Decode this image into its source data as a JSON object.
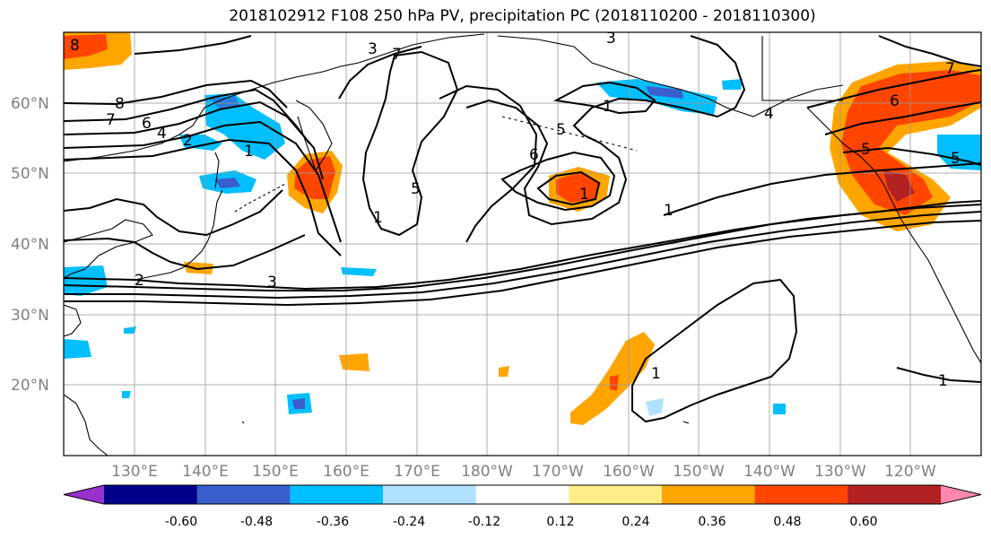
{
  "title": "2018102912 F108 250 hPa PV, precipitation PC (2018110200 - 2018110300)",
  "lat_labels": [
    "60°N",
    "50°N",
    "40°N",
    "30°N",
    "20°N"
  ],
  "lon_labels": [
    "130°E",
    "140°E",
    "150°E",
    "160°E",
    "170°E",
    "180°W",
    "170°W",
    "160°W",
    "150°W",
    "140°W",
    "130°W",
    "120°W"
  ],
  "colorbar": {
    "colors": [
      "#9932cc",
      "#00008b",
      "#3a5fcd",
      "#00bfff",
      "#b0e2ff",
      "#ffffff",
      "#ffee88",
      "#ffa500",
      "#ff4500",
      "#b22222",
      "#ff88b0"
    ],
    "tick_labels": [
      "-0.60",
      "-0.48",
      "-0.36",
      "-0.24",
      "-0.12",
      "0.12",
      "0.24",
      "0.36",
      "0.48",
      "0.60"
    ]
  },
  "map_data": {
    "projection": "PlateCarree",
    "extent_lon": [
      120,
      250
    ],
    "extent_lat": [
      10,
      70
    ],
    "grid_spacing_deg": 10,
    "contour_variable": "250 hPa PV",
    "shading_variable": "precipitation PC",
    "contour_labels": [
      "8",
      "7",
      "6",
      "4",
      "2",
      "1",
      "8",
      "7",
      "3",
      "3",
      "5",
      "6",
      "1",
      "5",
      "1",
      "1",
      "3",
      "2",
      "1",
      "7",
      "6",
      "5",
      "4",
      "1",
      "1",
      "5"
    ]
  }
}
